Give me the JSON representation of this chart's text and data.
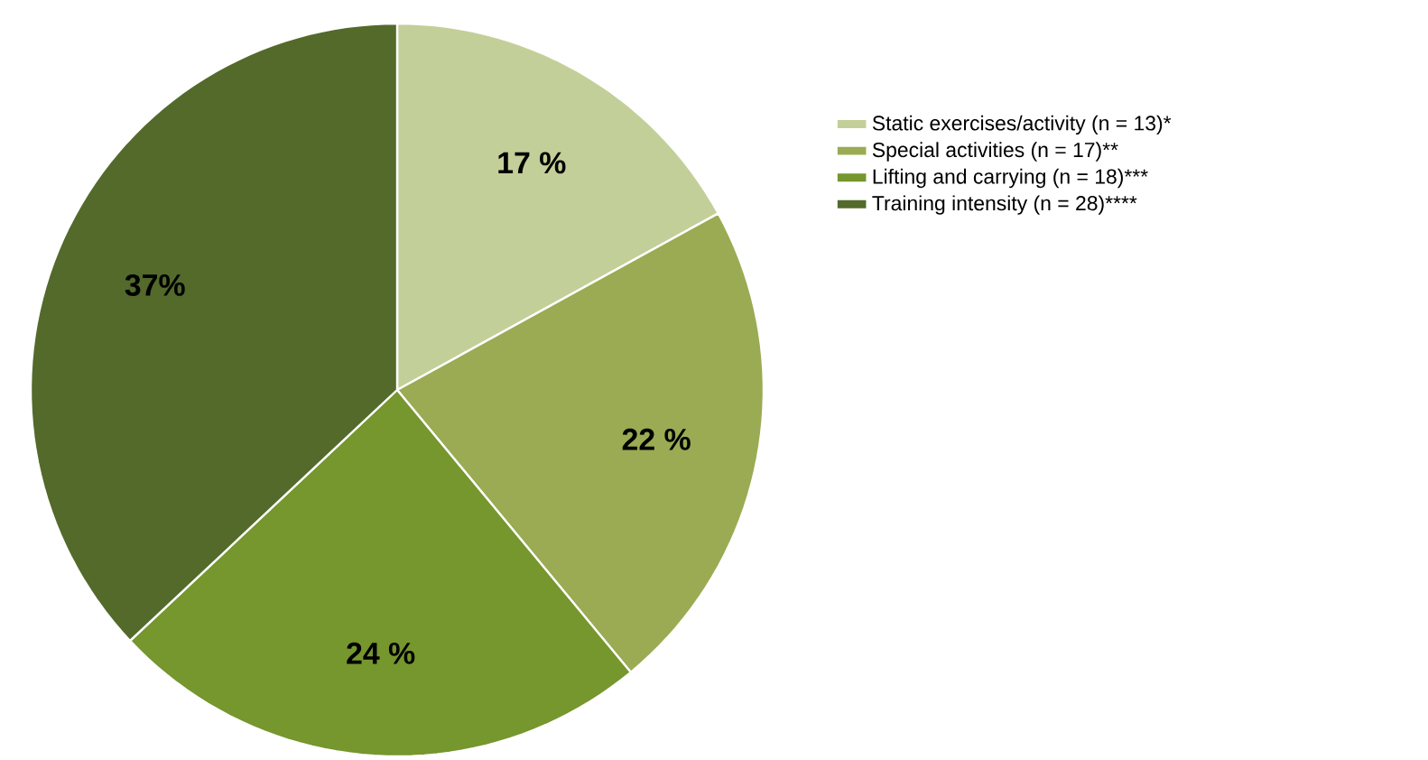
{
  "chart_data": {
    "type": "pie",
    "categories": [
      "Static exercises/activity (n = 13)*",
      "Special activities (n = 17)**",
      "Lifting and carrying (n = 18)***",
      "Training intensity (n = 28)****"
    ],
    "values": [
      17,
      22,
      24,
      37
    ],
    "value_labels": [
      "17 %",
      "22 %",
      "24 %",
      "37%"
    ],
    "colors": [
      "#c3cf98",
      "#9aab53",
      "#76962e",
      "#536a2b"
    ],
    "legend": "right"
  }
}
